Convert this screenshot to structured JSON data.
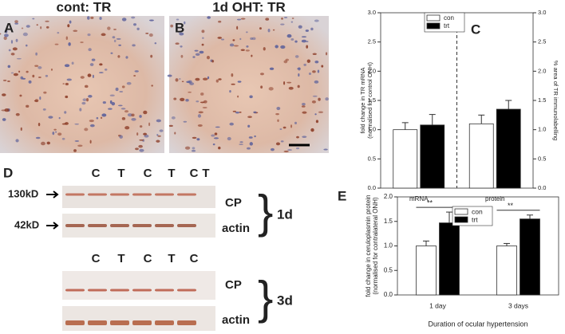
{
  "micrographs": [
    {
      "label": "A",
      "title": "cont: TR"
    },
    {
      "label": "B",
      "title": "1d OHT: TR"
    }
  ],
  "blot": {
    "label": "D",
    "lanes_1d": [
      "C",
      "T",
      "C",
      "T",
      "C",
      "T"
    ],
    "lanes_3d": [
      "C",
      "T",
      "C",
      "T",
      "C"
    ],
    "markers": [
      "130kD",
      "42kD"
    ],
    "rows": [
      "CP",
      "actin"
    ],
    "groups": [
      "1d",
      "3d"
    ]
  },
  "chart_data": [
    {
      "type": "bar",
      "panel_label": "C",
      "y_label": [
        "fold change in TR mRNA",
        "(normalised for control ONH)"
      ],
      "y2_label": "% area of TR immunolabelling",
      "categories": [
        "mRNA",
        "protein"
      ],
      "series": [
        {
          "name": "con",
          "color": "#ffffff",
          "values": [
            1.0,
            1.1
          ],
          "errors": [
            0.12,
            0.15
          ]
        },
        {
          "name": "trt",
          "color": "#000000",
          "values": [
            1.08,
            1.35
          ],
          "errors": [
            0.18,
            0.15
          ]
        }
      ],
      "ylim": [
        0,
        3
      ],
      "yticks": [
        {
          "value": 0,
          "label": "0.0"
        },
        0.5,
        {
          "value": 1,
          "label": "1.0"
        },
        1.5,
        {
          "value": 2,
          "label": "2.0"
        },
        2.5,
        {
          "value": 3,
          "label": "3.0"
        }
      ],
      "y2lim": [
        0,
        3
      ],
      "y2ticks": [
        {
          "value": 0,
          "label": "0.0"
        },
        0.5,
        {
          "value": 1,
          "label": "1.0"
        },
        1.5,
        {
          "value": 2,
          "label": "2.0"
        },
        2.5,
        {
          "value": 3,
          "label": "3.0"
        }
      ],
      "legend": "top-center",
      "divider": true
    },
    {
      "type": "bar",
      "panel_label": "E",
      "y_label": [
        "fold change in ceruloplasmin protein",
        "(normalised for contralateral ONH)"
      ],
      "x_label": "Duration of ocular hypertension",
      "categories": [
        "1 day",
        "3 days"
      ],
      "series": [
        {
          "name": "con",
          "color": "#ffffff",
          "values": [
            1.0,
            1.0
          ],
          "errors": [
            0.1,
            0.05
          ]
        },
        {
          "name": "trt",
          "color": "#000000",
          "values": [
            1.47,
            1.55
          ],
          "errors": [
            0.22,
            0.08
          ]
        }
      ],
      "ylim": [
        0,
        2
      ],
      "yticks": [
        {
          "value": 0,
          "label": "0.0"
        },
        0.5,
        {
          "value": 1,
          "label": "1.0"
        },
        1.5,
        {
          "value": 2,
          "label": "2.0"
        }
      ],
      "annotations": [
        "**",
        "**"
      ],
      "legend": "top-center"
    }
  ]
}
